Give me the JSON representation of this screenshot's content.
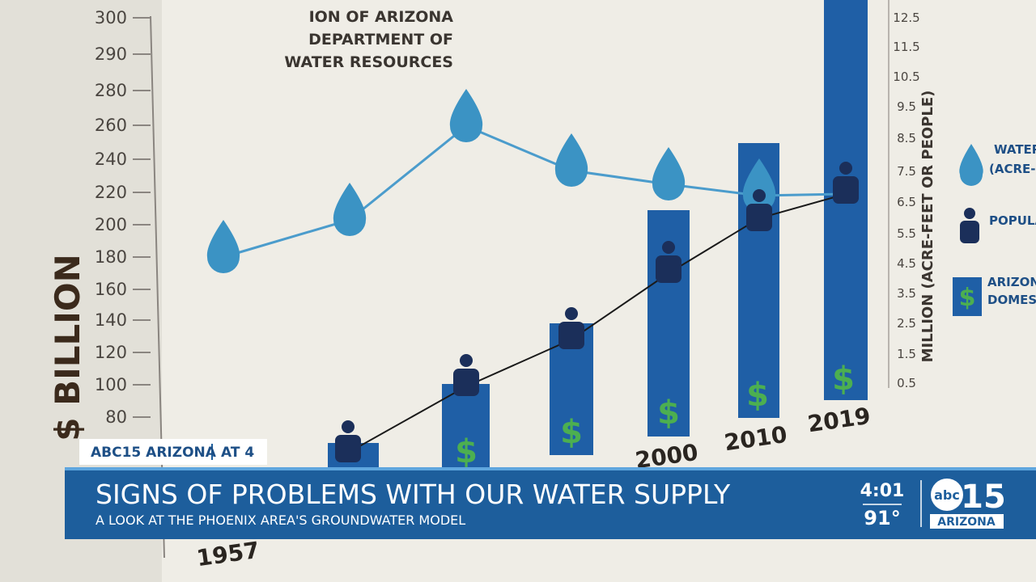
{
  "poster": {
    "source": [
      "ION OF ARIZONA",
      "DEPARTMENT OF",
      "WATER RESOURCES"
    ],
    "left_axis_title": "$ BILLION",
    "left_ticks": [
      "300",
      "290",
      "280",
      "260",
      "240",
      "220",
      "200",
      "180",
      "160",
      "140",
      "120",
      "100",
      "80"
    ],
    "right_axis_title": "MILLION (ACRE-FEET OR PEOPLE)",
    "right_ticks": [
      "12.5",
      "11.5",
      "10.5",
      "9.5",
      "8.5",
      "7.5",
      "6.5",
      "5.5",
      "4.5",
      "3.5",
      "2.5",
      "1.5",
      "0.5"
    ],
    "years": [
      "1957",
      "2000",
      "2010",
      "2019"
    ],
    "legend": [
      {
        "lines": [
          "WATER U",
          "(ACRE-FE"
        ]
      },
      {
        "lines": [
          "POPULAT"
        ]
      },
      {
        "lines": [
          "ARIZONA",
          "DOMESTIC"
        ]
      }
    ]
  },
  "banner": {
    "station": "ABC15 ARIZONA",
    "show": "AT 4",
    "headline": "SIGNS OF PROBLEMS WITH OUR WATER SUPPLY",
    "subheadline": "A LOOK AT THE PHOENIX AREA'S GROUNDWATER MODEL",
    "time": "4:01",
    "temperature": "91°",
    "logo": {
      "network": "abc",
      "channel": "15",
      "region": "ARIZONA"
    }
  }
}
